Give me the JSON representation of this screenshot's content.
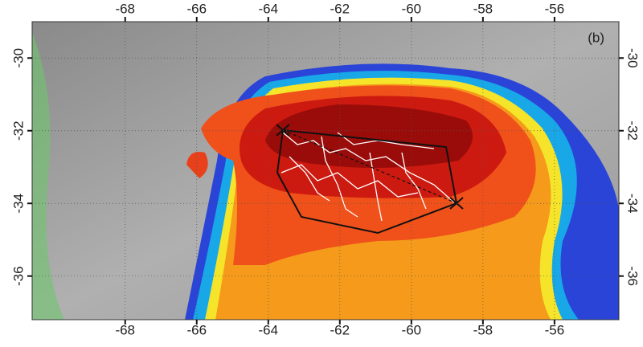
{
  "map": {
    "panel_label": "(b)",
    "xlim": [
      -70.6,
      -54.2
    ],
    "ylim": [
      -37.2,
      -29
    ],
    "xticks": [
      -68,
      -66,
      -64,
      -62,
      -60,
      -58,
      -56
    ],
    "yticks": [
      -30,
      -32,
      -34,
      -36
    ]
  }
}
